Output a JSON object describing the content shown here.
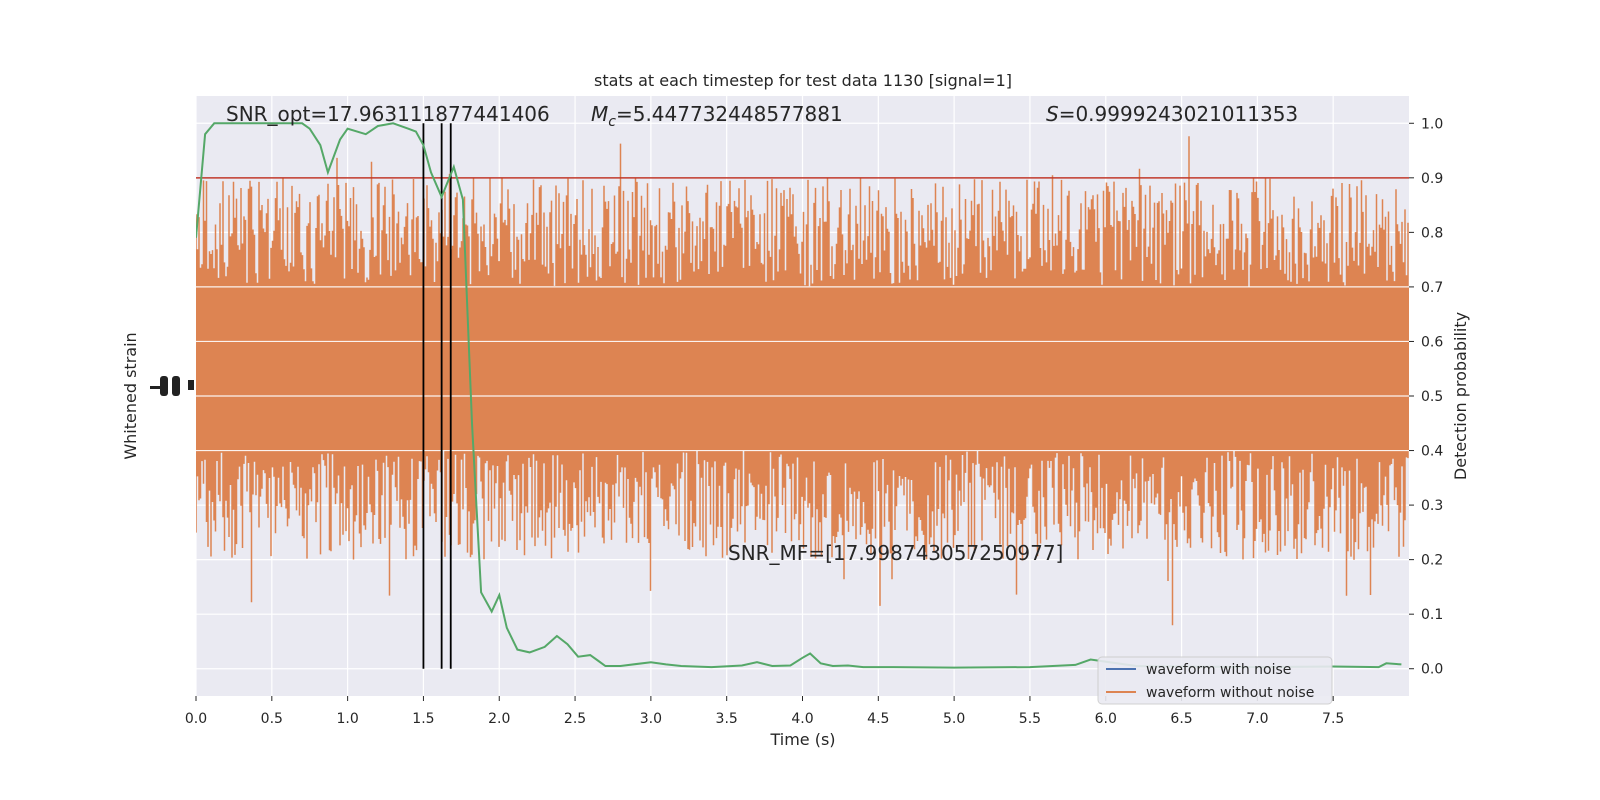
{
  "chart_data": {
    "type": "line",
    "title": "stats at each timestep for test data 1130 [signal=1]",
    "xlabel": "Time (s)",
    "ylabel_left": "Whitened strain",
    "ylabel_right": "Detection probability",
    "xlim": [
      0.0,
      8.0
    ],
    "ylim_right": [
      -0.05,
      1.05
    ],
    "x_ticks": [
      "0.0",
      "0.5",
      "1.0",
      "1.5",
      "2.0",
      "2.5",
      "3.0",
      "3.5",
      "4.0",
      "4.5",
      "5.0",
      "5.5",
      "6.0",
      "6.5",
      "7.0",
      "7.5"
    ],
    "y_ticks_right": [
      "0.0",
      "0.1",
      "0.2",
      "0.3",
      "0.4",
      "0.5",
      "0.6",
      "0.7",
      "0.8",
      "0.9",
      "1.0"
    ],
    "grid": true,
    "annotations": {
      "snr_opt": "SNR_opt=17.963111877441406",
      "mc_symbol": "M",
      "mc_sub": "c",
      "mc_value": "=5.447732448577881",
      "s_symbol": "S",
      "s_value": "=0.9999243021011353",
      "snr_mf": "SNR_MF=[17.998743057250977]"
    },
    "threshold": {
      "y": 0.9,
      "color": "#c0392b"
    },
    "vertical_lines_x": [
      1.5,
      1.62,
      1.68
    ],
    "series": [
      {
        "name": "waveform with noise",
        "color": "#4c72b0"
      },
      {
        "name": "waveform without noise",
        "color": "#dd8452"
      }
    ],
    "probability_series": {
      "color": "#55a868",
      "x": [
        0.0,
        0.06,
        0.12,
        0.2,
        0.3,
        0.5,
        0.7,
        0.75,
        0.82,
        0.87,
        0.95,
        1.0,
        1.12,
        1.2,
        1.3,
        1.4,
        1.45,
        1.5,
        1.55,
        1.62,
        1.7,
        1.76,
        1.82,
        1.88,
        1.95,
        2.0,
        2.05,
        2.12,
        2.2,
        2.3,
        2.38,
        2.45,
        2.52,
        2.6,
        2.65,
        2.7,
        2.8,
        3.0,
        3.1,
        3.2,
        3.4,
        3.6,
        3.7,
        3.8,
        3.92,
        4.0,
        4.05,
        4.12,
        4.2,
        4.3,
        4.4,
        4.6,
        5.0,
        5.5,
        5.8,
        5.9,
        6.2,
        7.0,
        7.5,
        7.8,
        7.85,
        7.95
      ],
      "y": [
        0.79,
        0.98,
        1.0,
        1.0,
        1.0,
        1.0,
        1.0,
        0.99,
        0.96,
        0.91,
        0.97,
        0.99,
        0.98,
        0.995,
        1.0,
        0.99,
        0.985,
        0.96,
        0.91,
        0.865,
        0.92,
        0.86,
        0.45,
        0.14,
        0.105,
        0.135,
        0.075,
        0.035,
        0.03,
        0.04,
        0.06,
        0.045,
        0.022,
        0.025,
        0.015,
        0.005,
        0.005,
        0.012,
        0.008,
        0.005,
        0.003,
        0.006,
        0.012,
        0.005,
        0.006,
        0.02,
        0.028,
        0.01,
        0.005,
        0.006,
        0.003,
        0.003,
        0.002,
        0.003,
        0.007,
        0.017,
        0.005,
        0.003,
        0.004,
        0.003,
        0.01,
        0.008
      ]
    }
  }
}
